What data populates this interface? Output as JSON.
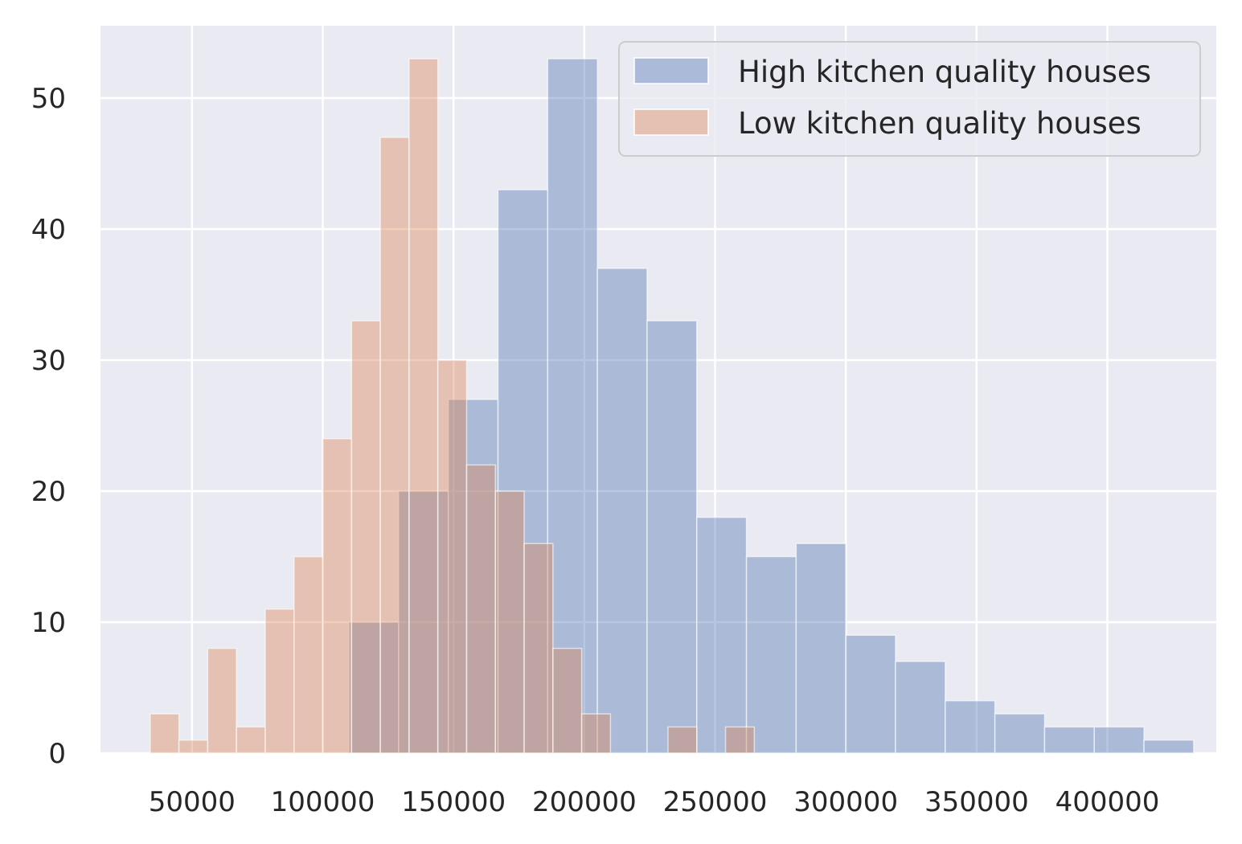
{
  "chart_data": {
    "type": "bar",
    "xlim": [
      15000,
      435000
    ],
    "ylim": [
      0,
      55.5
    ],
    "x_ticks": [
      "50000",
      "100000",
      "150000",
      "200000",
      "250000",
      "300000",
      "350000",
      "400000"
    ],
    "y_ticks": [
      "0",
      "10",
      "20",
      "30",
      "40",
      "50"
    ],
    "grid": true,
    "legend_position": "top-right",
    "series": [
      {
        "name": "High kitchen quality houses",
        "color": "#4c72b0",
        "opacity": 0.4,
        "bins": [
          {
            "x0": 110000,
            "x1": 129000,
            "count": 10
          },
          {
            "x0": 129000,
            "x1": 148000,
            "count": 20
          },
          {
            "x0": 148000,
            "x1": 167000,
            "count": 27
          },
          {
            "x0": 167000,
            "x1": 186000,
            "count": 43
          },
          {
            "x0": 186000,
            "x1": 205000,
            "count": 53
          },
          {
            "x0": 205000,
            "x1": 224000,
            "count": 37
          },
          {
            "x0": 224000,
            "x1": 243000,
            "count": 33
          },
          {
            "x0": 243000,
            "x1": 262000,
            "count": 18
          },
          {
            "x0": 262000,
            "x1": 281000,
            "count": 15
          },
          {
            "x0": 281000,
            "x1": 300000,
            "count": 16
          },
          {
            "x0": 300000,
            "x1": 319000,
            "count": 9
          },
          {
            "x0": 319000,
            "x1": 338000,
            "count": 7
          },
          {
            "x0": 338000,
            "x1": 357000,
            "count": 4
          },
          {
            "x0": 357000,
            "x1": 376000,
            "count": 3
          },
          {
            "x0": 376000,
            "x1": 395000,
            "count": 2
          },
          {
            "x0": 395000,
            "x1": 414000,
            "count": 2
          },
          {
            "x0": 414000,
            "x1": 433000,
            "count": 1
          }
        ]
      },
      {
        "name": "Low kitchen quality houses",
        "color": "#dd8452",
        "opacity": 0.4,
        "bins": [
          {
            "x0": 34000,
            "x1": 45000,
            "count": 3
          },
          {
            "x0": 45000,
            "x1": 56000,
            "count": 1
          },
          {
            "x0": 56000,
            "x1": 67000,
            "count": 8
          },
          {
            "x0": 67000,
            "x1": 78000,
            "count": 2
          },
          {
            "x0": 78000,
            "x1": 89000,
            "count": 11
          },
          {
            "x0": 89000,
            "x1": 100000,
            "count": 15
          },
          {
            "x0": 100000,
            "x1": 111000,
            "count": 24
          },
          {
            "x0": 111000,
            "x1": 122000,
            "count": 33
          },
          {
            "x0": 122000,
            "x1": 133000,
            "count": 47
          },
          {
            "x0": 133000,
            "x1": 144000,
            "count": 53
          },
          {
            "x0": 144000,
            "x1": 155000,
            "count": 30
          },
          {
            "x0": 155000,
            "x1": 166000,
            "count": 22
          },
          {
            "x0": 166000,
            "x1": 177000,
            "count": 20
          },
          {
            "x0": 177000,
            "x1": 188000,
            "count": 16
          },
          {
            "x0": 188000,
            "x1": 199000,
            "count": 8
          },
          {
            "x0": 199000,
            "x1": 210000,
            "count": 3
          },
          {
            "x0": 210000,
            "x1": 221000,
            "count": 0
          },
          {
            "x0": 221000,
            "x1": 232000,
            "count": 0
          },
          {
            "x0": 232000,
            "x1": 243000,
            "count": 2
          },
          {
            "x0": 243000,
            "x1": 254000,
            "count": 0
          },
          {
            "x0": 254000,
            "x1": 265000,
            "count": 2
          }
        ]
      }
    ]
  }
}
